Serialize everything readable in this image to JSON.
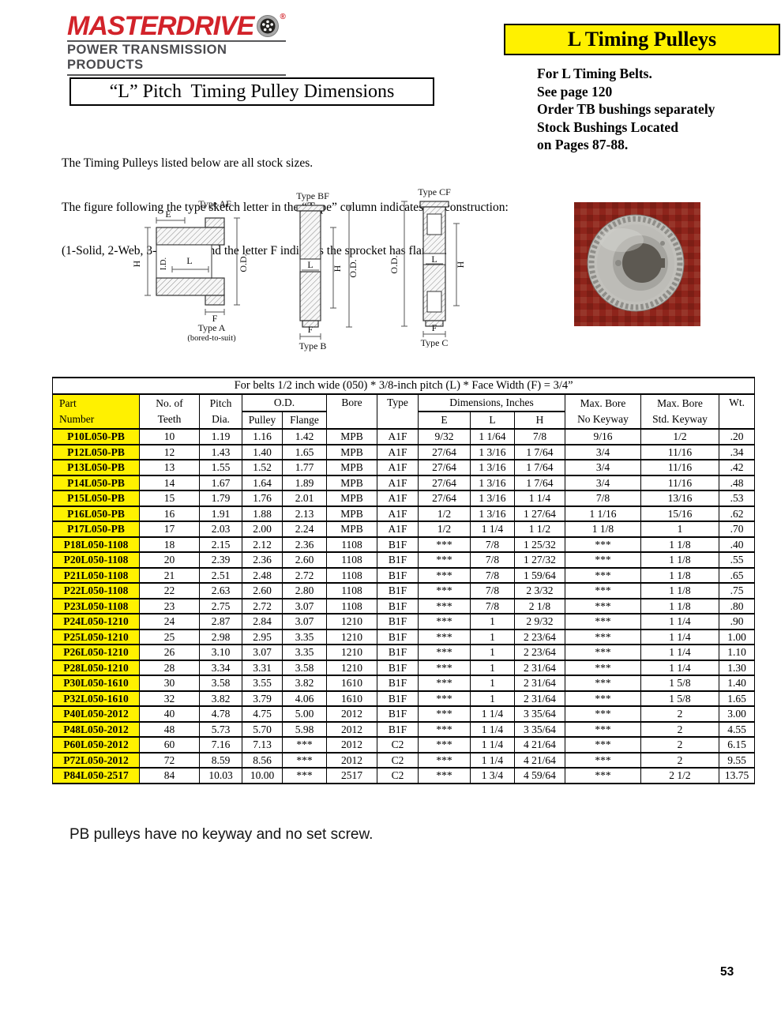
{
  "brand": {
    "name": "MASTERDRIVE",
    "registered": "®",
    "tagline": "POWER TRANSMISSION PRODUCTS"
  },
  "banner": {
    "title": "L Timing Pulleys"
  },
  "page_title": "“L” Pitch  Timing Pulley Dimensions",
  "info_lines": {
    "l1": "For L Timing Belts.",
    "l2": "See page 120",
    "l3": "Order TB bushings separately",
    "l4": "Stock Bushings Located",
    "l5": "on Pages 87-88."
  },
  "intro_lines": {
    "l1": "The Timing Pulleys listed below are all stock sizes.",
    "l2": "The figure following the type sketch letter in the “Type” column indicates the construction:",
    "l3": "(1-Solid, 2-Web, 3-Spoked), and the letter F indicates the sprocket has flanges."
  },
  "diagrams": {
    "d1": {
      "top": "Type AF",
      "e": "E",
      "h": "H",
      "id": "I.D.",
      "l": "L",
      "od": "O.D.",
      "f": "F",
      "bottom": "Type A",
      "bottom_sub": "(bored-to-suit)"
    },
    "d2": {
      "top": "Type BF",
      "l": "L",
      "h": "H",
      "od": "O.D.",
      "f": "F",
      "bottom": "Type B"
    },
    "d3": {
      "top": "Type CF",
      "od": "O.D.",
      "h": "H",
      "l": "L",
      "f": "F",
      "bottom": "Type C"
    }
  },
  "colors": {
    "brand_red": "#d2232a",
    "banner_yellow": "#fff100",
    "part_cell_yellow": "#fff100",
    "photo_background_red": "#8e241b"
  },
  "table": {
    "span_header": "For belts 1/2 inch wide (050) * 3/8-inch pitch (L) * Face Width (F) = 3/4”",
    "headers": {
      "part": [
        "Part",
        "Number"
      ],
      "teeth": [
        "No. of",
        "Teeth"
      ],
      "pitch": [
        "Pitch",
        "Dia."
      ],
      "od": "O.D.",
      "od_sub": [
        "Pulley",
        "Flange"
      ],
      "bore": "Bore",
      "type": "Type",
      "dims": "Dimensions, Inches",
      "dims_sub": [
        "E",
        "L",
        "H"
      ],
      "maxbore_nokey": [
        "Max. Bore",
        "No Keyway"
      ],
      "maxbore_stdkey": [
        "Max. Bore",
        "Std. Keyway"
      ],
      "wt": "Wt."
    },
    "rows": [
      [
        "P10L050-PB",
        "10",
        "1.19",
        "1.16",
        "1.42",
        "MPB",
        "A1F",
        "9/32",
        "1 1/64",
        "7/8",
        "9/16",
        "1/2",
        ".20"
      ],
      [
        "P12L050-PB",
        "12",
        "1.43",
        "1.40",
        "1.65",
        "MPB",
        "A1F",
        "27/64",
        "1 3/16",
        "1 7/64",
        "3/4",
        "11/16",
        ".34"
      ],
      [
        "P13L050-PB",
        "13",
        "1.55",
        "1.52",
        "1.77",
        "MPB",
        "A1F",
        "27/64",
        "1 3/16",
        "1 7/64",
        "3/4",
        "11/16",
        ".42"
      ],
      [
        "P14L050-PB",
        "14",
        "1.67",
        "1.64",
        "1.89",
        "MPB",
        "A1F",
        "27/64",
        "1 3/16",
        "1 7/64",
        "3/4",
        "11/16",
        ".48"
      ],
      [
        "P15L050-PB",
        "15",
        "1.79",
        "1.76",
        "2.01",
        "MPB",
        "A1F",
        "27/64",
        "1 3/16",
        "1 1/4",
        "7/8",
        "13/16",
        ".53"
      ],
      [
        "P16L050-PB",
        "16",
        "1.91",
        "1.88",
        "2.13",
        "MPB",
        "A1F",
        "1/2",
        "1 3/16",
        "1 27/64",
        "1 1/16",
        "15/16",
        ".62"
      ],
      [
        "P17L050-PB",
        "17",
        "2.03",
        "2.00",
        "2.24",
        "MPB",
        "A1F",
        "1/2",
        "1 1/4",
        "1 1/2",
        "1 1/8",
        "1",
        ".70"
      ],
      [
        "P18L050-1108",
        "18",
        "2.15",
        "2.12",
        "2.36",
        "1108",
        "B1F",
        "***",
        "7/8",
        "1 25/32",
        "***",
        "1 1/8",
        ".40"
      ],
      [
        "P20L050-1108",
        "20",
        "2.39",
        "2.36",
        "2.60",
        "1108",
        "B1F",
        "***",
        "7/8",
        "1 27/32",
        "***",
        "1 1/8",
        ".55"
      ],
      [
        "P21L050-1108",
        "21",
        "2.51",
        "2.48",
        "2.72",
        "1108",
        "B1F",
        "***",
        "7/8",
        "1 59/64",
        "***",
        "1 1/8",
        ".65"
      ],
      [
        "P22L050-1108",
        "22",
        "2.63",
        "2.60",
        "2.80",
        "1108",
        "B1F",
        "***",
        "7/8",
        "2 3/32",
        "***",
        "1 1/8",
        ".75"
      ],
      [
        "P23L050-1108",
        "23",
        "2.75",
        "2.72",
        "3.07",
        "1108",
        "B1F",
        "***",
        "7/8",
        "2 1/8",
        "***",
        "1 1/8",
        ".80"
      ],
      [
        "P24L050-1210",
        "24",
        "2.87",
        "2.84",
        "3.07",
        "1210",
        "B1F",
        "***",
        "1",
        "2 9/32",
        "***",
        "1 1/4",
        ".90"
      ],
      [
        "P25L050-1210",
        "25",
        "2.98",
        "2.95",
        "3.35",
        "1210",
        "B1F",
        "***",
        "1",
        "2 23/64",
        "***",
        "1 1/4",
        "1.00"
      ],
      [
        "P26L050-1210",
        "26",
        "3.10",
        "3.07",
        "3.35",
        "1210",
        "B1F",
        "***",
        "1",
        "2 23/64",
        "***",
        "1 1/4",
        "1.10"
      ],
      [
        "P28L050-1210",
        "28",
        "3.34",
        "3.31",
        "3.58",
        "1210",
        "B1F",
        "***",
        "1",
        "2 31/64",
        "***",
        "1 1/4",
        "1.30"
      ],
      [
        "P30L050-1610",
        "30",
        "3.58",
        "3.55",
        "3.82",
        "1610",
        "B1F",
        "***",
        "1",
        "2 31/64",
        "***",
        "1 5/8",
        "1.40"
      ],
      [
        "P32L050-1610",
        "32",
        "3.82",
        "3.79",
        "4.06",
        "1610",
        "B1F",
        "***",
        "1",
        "2 31/64",
        "***",
        "1 5/8",
        "1.65"
      ],
      [
        "P40L050-2012",
        "40",
        "4.78",
        "4.75",
        "5.00",
        "2012",
        "B1F",
        "***",
        "1 1/4",
        "3 35/64",
        "***",
        "2",
        "3.00"
      ],
      [
        "P48L050-2012",
        "48",
        "5.73",
        "5.70",
        "5.98",
        "2012",
        "B1F",
        "***",
        "1 1/4",
        "3 35/64",
        "***",
        "2",
        "4.55"
      ],
      [
        "P60L050-2012",
        "60",
        "7.16",
        "7.13",
        "***",
        "2012",
        "C2",
        "***",
        "1 1/4",
        "4 21/64",
        "***",
        "2",
        "6.15"
      ],
      [
        "P72L050-2012",
        "72",
        "8.59",
        "8.56",
        "***",
        "2012",
        "C2",
        "***",
        "1 1/4",
        "4 21/64",
        "***",
        "2",
        "9.55"
      ],
      [
        "P84L050-2517",
        "84",
        "10.03",
        "10.00",
        "***",
        "2517",
        "C2",
        "***",
        "1 3/4",
        "4 59/64",
        "***",
        "2 1/2",
        "13.75"
      ]
    ]
  },
  "note": "PB pulleys have no keyway and no set screw.",
  "page_number": "53"
}
